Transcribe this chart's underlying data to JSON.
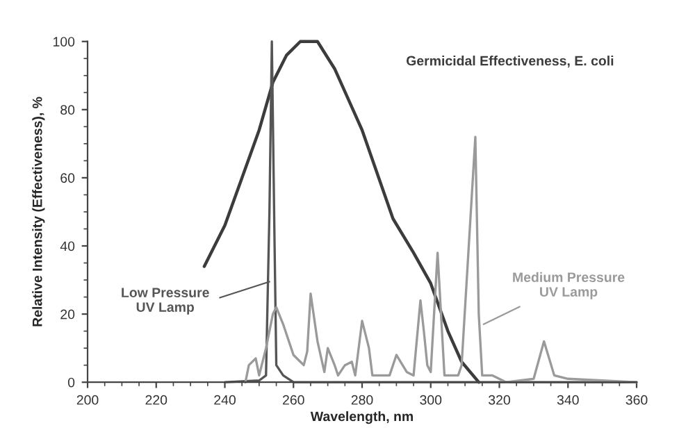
{
  "chart_data": {
    "type": "line",
    "xlabel": "Wavelength, nm",
    "ylabel": "Relative Intensity (Effectiveness), %",
    "xlim": [
      200,
      360
    ],
    "xticks": [
      200,
      220,
      240,
      260,
      280,
      300,
      320,
      340,
      360
    ],
    "ylim": [
      0,
      100
    ],
    "yticks": [
      0,
      20,
      40,
      60,
      80,
      100
    ],
    "grid": false,
    "legend": false,
    "marker": "none",
    "line_style": "solid",
    "series": [
      {
        "name": "Germicidal Effectiveness, E. coli",
        "color": "#3c3c3c",
        "x": [
          234,
          240,
          245,
          250,
          254,
          258,
          262,
          267,
          272,
          280,
          289,
          295,
          300,
          305,
          309,
          314
        ],
        "values": [
          34,
          46,
          60,
          74,
          88,
          96,
          100,
          100,
          92,
          74,
          48,
          38,
          29,
          15,
          6,
          0
        ]
      },
      {
        "color": "#555555",
        "x": [
          240,
          250,
          252,
          253,
          253.7,
          254.5,
          255,
          257,
          260,
          360
        ],
        "values": [
          0,
          0.5,
          2,
          50,
          100,
          40,
          5,
          2,
          0,
          0
        ]
      },
      {
        "color": "#9a9a9a",
        "x": [
          246,
          247,
          249,
          250,
          252,
          254,
          255,
          257,
          258,
          260,
          262,
          263,
          264,
          265,
          267,
          269,
          270,
          272,
          273,
          275,
          277,
          278,
          280,
          282,
          283,
          288,
          290,
          293,
          295,
          297,
          298,
          299,
          300,
          302,
          304,
          308,
          309,
          313,
          314,
          315,
          318,
          322,
          330,
          333,
          336,
          340,
          360
        ],
        "values": [
          0,
          5,
          7,
          2,
          10,
          20,
          22,
          17,
          14,
          8,
          6,
          5,
          9,
          26,
          12,
          3,
          10,
          5,
          2,
          5,
          6,
          2,
          18,
          10,
          2,
          2,
          8,
          3,
          2,
          24,
          15,
          5,
          3,
          38,
          2,
          2,
          5,
          72,
          20,
          2,
          2,
          0,
          1,
          12,
          2,
          1,
          0
        ]
      }
    ],
    "annotations": [
      {
        "text": "Low Pressure\nUV Lamp",
        "x": 253,
        "y": 29.5
      },
      {
        "text": "Medium Pressure\nUV Lamp",
        "x": 315.4,
        "y": 17
      }
    ]
  }
}
